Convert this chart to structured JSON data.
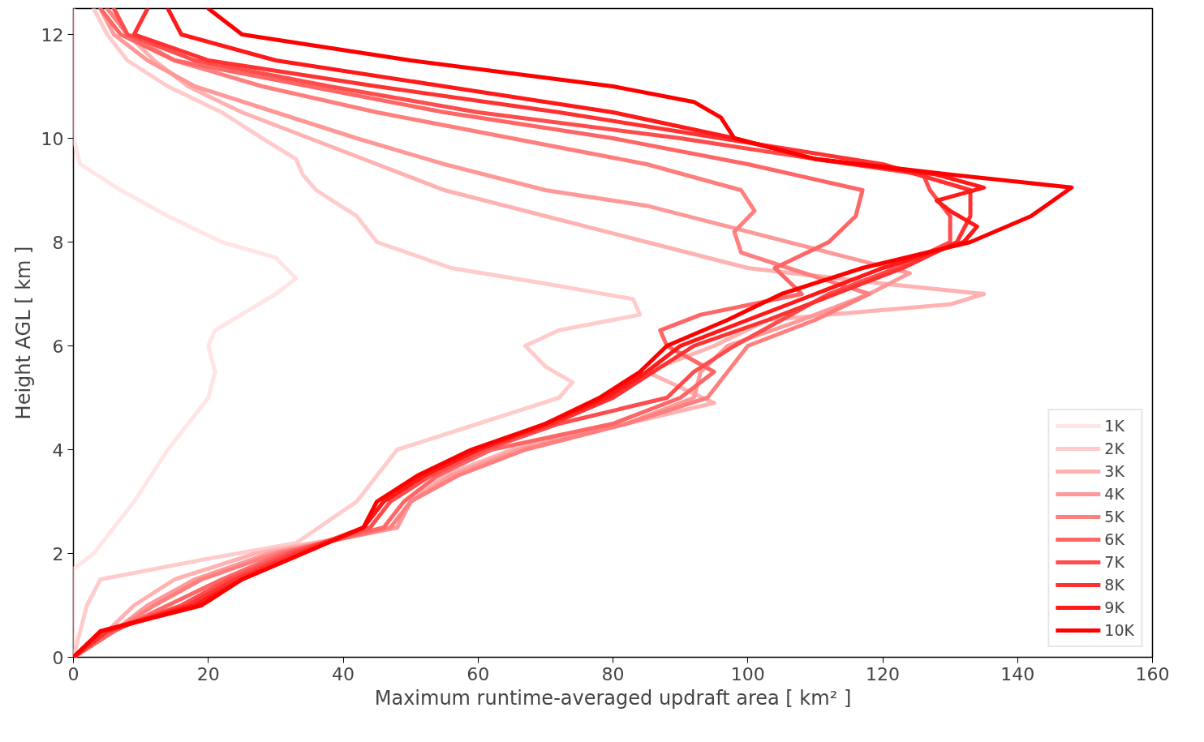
{
  "chart_data": {
    "type": "line",
    "xlabel": "Maximum runtime-averaged updraft area [ km² ]",
    "ylabel": "Height AGL [ km ]",
    "xlim": [
      0,
      160
    ],
    "ylim": [
      0,
      12.5
    ],
    "xticks": [
      0,
      20,
      40,
      60,
      80,
      100,
      120,
      140,
      160
    ],
    "yticks": [
      0,
      2,
      4,
      6,
      8,
      10,
      12
    ],
    "grid": false,
    "legend": "bottom right",
    "line_style": "solid",
    "marker": "none",
    "series": [
      {
        "name": "1K",
        "color": "#ffe5e5",
        "x": [
          0,
          0,
          3,
          9,
          14,
          20,
          21,
          20,
          21,
          30,
          33,
          30,
          22,
          14,
          7,
          1,
          0,
          0,
          0
        ],
        "values": [
          0,
          1.7,
          2,
          3,
          4,
          5,
          5.5,
          6,
          6.3,
          7,
          7.3,
          7.7,
          8,
          8.5,
          9,
          9.5,
          10,
          11,
          12.5
        ]
      },
      {
        "name": "2K",
        "color": "#ffcccc",
        "x": [
          0,
          2,
          4,
          20,
          33,
          42,
          45,
          48,
          60,
          72,
          74,
          70,
          67,
          72,
          84,
          83,
          70,
          56,
          45,
          42,
          36,
          34,
          33,
          28,
          22,
          14,
          8,
          5,
          3
        ],
        "values": [
          0,
          1,
          1.5,
          1.9,
          2.2,
          3,
          3.5,
          4,
          4.5,
          5,
          5.3,
          5.6,
          6,
          6.3,
          6.6,
          6.9,
          7.2,
          7.5,
          8,
          8.5,
          9,
          9.3,
          9.6,
          10,
          10.5,
          11,
          11.5,
          12,
          12.5
        ]
      },
      {
        "name": "3K",
        "color": "#ffb2b2",
        "x": [
          0,
          5,
          9,
          15,
          27,
          48,
          50,
          55,
          65,
          82,
          95,
          85,
          95,
          103,
          130,
          135,
          120,
          100,
          85,
          70,
          55,
          45,
          35,
          25,
          17,
          12,
          8,
          6
        ],
        "values": [
          0,
          0.5,
          1,
          1.5,
          2,
          2.5,
          3,
          3.5,
          4,
          4.5,
          4.9,
          5.5,
          6,
          6.5,
          6.8,
          7,
          7.2,
          7.5,
          8,
          8.5,
          9,
          9.5,
          10,
          10.5,
          11,
          11.5,
          12,
          12.5
        ]
      },
      {
        "name": "4K",
        "color": "#ff9999",
        "x": [
          0,
          6,
          11,
          18,
          29,
          48,
          50,
          56,
          66,
          82,
          92,
          93,
          97,
          108,
          118,
          124,
          112,
          100,
          85,
          70,
          55,
          42,
          30,
          18,
          11,
          6,
          4
        ],
        "values": [
          0,
          0.5,
          1,
          1.5,
          2,
          2.5,
          3,
          3.5,
          4,
          4.5,
          5,
          5.5,
          6,
          6.5,
          7,
          7.4,
          7.8,
          8.2,
          8.7,
          9,
          9.5,
          10,
          10.5,
          11,
          11.5,
          12,
          12.5
        ]
      },
      {
        "name": "5K",
        "color": "#ff7f7f",
        "x": [
          0,
          6,
          12,
          19,
          30,
          47,
          50,
          57,
          67,
          82,
          94,
          97,
          100,
          110,
          118,
          106,
          99,
          98,
          101,
          99,
          85,
          65,
          45,
          28,
          15,
          8,
          5
        ],
        "values": [
          0,
          0.5,
          1,
          1.5,
          2,
          2.5,
          3,
          3.5,
          4,
          4.5,
          5,
          5.5,
          6,
          6.5,
          7,
          7.5,
          7.8,
          8.2,
          8.6,
          9,
          9.5,
          10,
          10.5,
          11,
          11.5,
          12,
          12.5
        ]
      },
      {
        "name": "6K",
        "color": "#ff6666",
        "x": [
          0,
          6,
          14,
          22,
          31,
          46,
          49,
          54,
          62,
          80,
          90,
          95,
          88,
          87,
          93,
          108,
          104,
          112,
          116,
          117,
          100,
          80,
          55,
          35,
          15,
          7,
          4
        ],
        "values": [
          0,
          0.5,
          1,
          1.5,
          2,
          2.5,
          3,
          3.5,
          4,
          4.5,
          5,
          5.5,
          6,
          6.3,
          6.6,
          7,
          7.5,
          8,
          8.5,
          9,
          9.5,
          10,
          10.5,
          11,
          11.5,
          12,
          12.5
        ]
      },
      {
        "name": "7K",
        "color": "#ff4c4c",
        "x": [
          0,
          5,
          16,
          23,
          32,
          44,
          47,
          53,
          61,
          72,
          88,
          92,
          98,
          105,
          112,
          122,
          130,
          130,
          127,
          126,
          110,
          90,
          60,
          38,
          18,
          8,
          6
        ],
        "values": [
          0,
          0.5,
          1,
          1.5,
          2,
          2.5,
          3,
          3.5,
          4,
          4.5,
          5,
          5.5,
          6,
          6.5,
          7,
          7.5,
          8,
          8.5,
          9,
          9.3,
          9.6,
          10,
          10.5,
          11,
          11.5,
          12,
          12.5
        ]
      },
      {
        "name": "8K",
        "color": "#ff3232",
        "x": [
          0,
          5,
          17,
          24,
          33,
          43,
          46,
          52,
          60,
          71,
          80,
          86,
          92,
          103,
          113,
          123,
          131,
          133,
          133,
          120,
          96,
          72,
          45,
          20,
          9,
          11
        ],
        "values": [
          0,
          0.5,
          1,
          1.5,
          2,
          2.5,
          3,
          3.5,
          4,
          4.5,
          5,
          5.5,
          6,
          6.5,
          7,
          7.5,
          8,
          8.5,
          9,
          9.5,
          10,
          10.5,
          11,
          11.5,
          12,
          12.5
        ]
      },
      {
        "name": "9K",
        "color": "#ff1919",
        "x": [
          0,
          4,
          18,
          25,
          34,
          43,
          46,
          52,
          60,
          70,
          79,
          85,
          90,
          100,
          110,
          120,
          132,
          134,
          130,
          128,
          135,
          128,
          110,
          98,
          80,
          55,
          30,
          16,
          14
        ],
        "values": [
          0,
          0.5,
          1,
          1.5,
          2,
          2.5,
          3,
          3.5,
          4,
          4.5,
          5,
          5.5,
          6,
          6.5,
          7,
          7.5,
          8,
          8.3,
          8.6,
          8.8,
          9.05,
          9.3,
          9.6,
          10,
          10.5,
          11,
          11.5,
          12,
          12.5
        ]
      },
      {
        "name": "10K",
        "color": "#ff0000",
        "x": [
          0,
          4,
          19,
          25,
          34,
          43,
          45,
          51,
          59,
          70,
          78,
          84,
          88,
          97,
          105,
          117,
          133,
          142,
          148,
          130,
          110,
          98,
          96,
          92,
          80,
          50,
          25,
          20
        ],
        "values": [
          0,
          0.5,
          1,
          1.5,
          2,
          2.5,
          3,
          3.5,
          4,
          4.5,
          5,
          5.5,
          6,
          6.5,
          7,
          7.5,
          8,
          8.5,
          9.05,
          9.3,
          9.6,
          10,
          10.4,
          10.7,
          11,
          11.5,
          12,
          12.5
        ]
      }
    ]
  }
}
